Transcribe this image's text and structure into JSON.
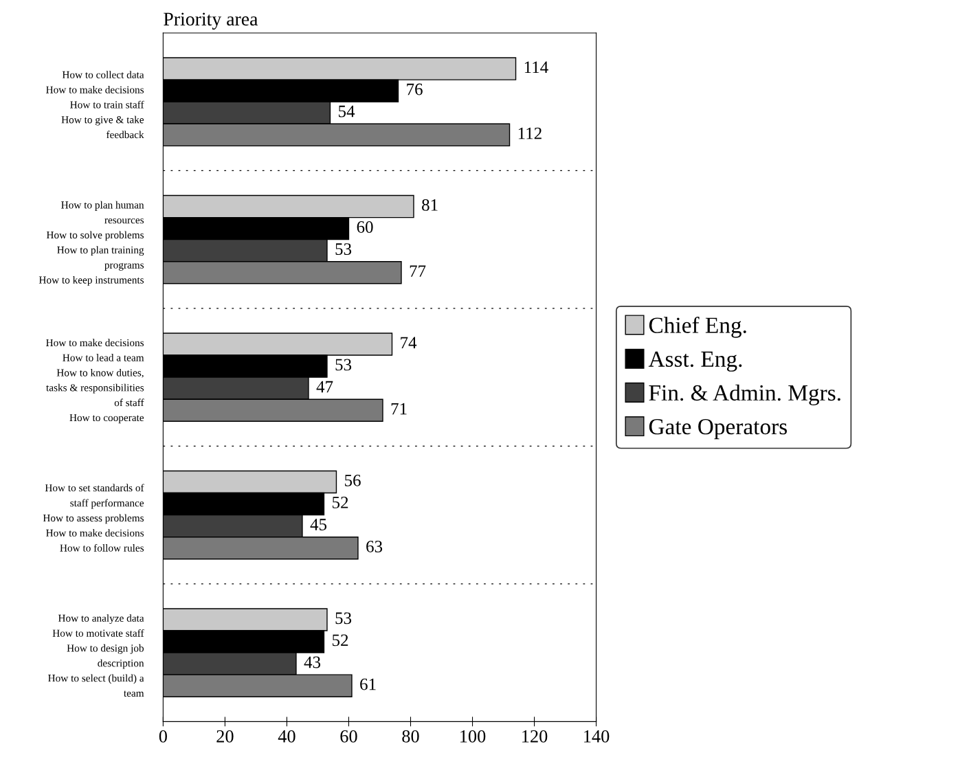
{
  "chart_data": {
    "type": "bar",
    "orientation": "horizontal",
    "title": "Priority area",
    "categories": [
      "How to collect data\nHow to make decisions\nHow to train staff\nHow to give & take\nfeedback",
      "How to plan human\nresources\nHow to solve problems\nHow to plan training\nprograms\nHow to keep instruments",
      "How to make decisions\nHow to lead a team\nHow to know duties,\ntasks & responsibilities\nof staff\nHow to cooperate",
      "How to set standards of\nstaff performance\nHow to assess problems\nHow to make decisions\nHow to follow rules",
      "How to analyze data\nHow to motivate staff\nHow to design job\ndescription\nHow to select (build) a\nteam"
    ],
    "series": [
      {
        "name": "Chief Eng.",
        "color": "#c8c8c8",
        "values": [
          114,
          81,
          74,
          56,
          53
        ]
      },
      {
        "name": "Asst. Eng.",
        "color": "#000000",
        "values": [
          76,
          60,
          53,
          52,
          52
        ]
      },
      {
        "name": "Fin. & Admin. Mgrs.",
        "color": "#404040",
        "values": [
          54,
          53,
          47,
          45,
          43
        ]
      },
      {
        "name": "Gate Operators",
        "color": "#7a7a7a",
        "values": [
          112,
          77,
          71,
          63,
          61
        ]
      }
    ],
    "xlim": [
      0,
      140
    ],
    "xticks": [
      0,
      20,
      40,
      60,
      80,
      100,
      120,
      140
    ],
    "data_labels": true,
    "grid": "y",
    "legend": "right"
  }
}
